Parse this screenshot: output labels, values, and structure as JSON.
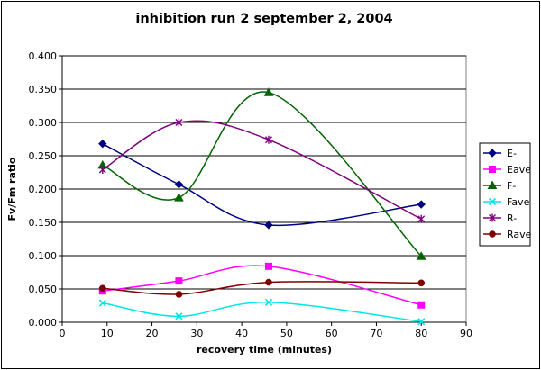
{
  "chart_data": {
    "type": "line",
    "title": "inhibition run 2 september  2, 2004",
    "xlabel": "recovery time (minutes)",
    "ylabel": "Fv/Fm ratio",
    "xlim": [
      0,
      90
    ],
    "ylim": [
      0,
      0.4
    ],
    "xticks": [
      0,
      10,
      20,
      30,
      40,
      50,
      60,
      70,
      80,
      90
    ],
    "yticks": [
      0,
      0.05,
      0.1,
      0.15,
      0.2,
      0.25,
      0.3,
      0.35,
      0.4
    ],
    "xtick_labels": [
      "0",
      "10",
      "20",
      "30",
      "40",
      "50",
      "60",
      "70",
      "80",
      "90"
    ],
    "ytick_labels": [
      "0.000",
      "0.050",
      "0.100",
      "0.150",
      "0.200",
      "0.250",
      "0.300",
      "0.350",
      "0.400"
    ],
    "grid": "horizontal",
    "legend_position": "right",
    "plot_background": "#ffffff",
    "series": [
      {
        "name": "E-",
        "color": "#000080",
        "marker": "diamond",
        "x": [
          9,
          26,
          46,
          80
        ],
        "y": [
          0.268,
          0.207,
          0.146,
          0.177
        ]
      },
      {
        "name": "Eave",
        "color": "#ff00ff",
        "marker": "square",
        "x": [
          9,
          26,
          46,
          80
        ],
        "y": [
          0.047,
          0.062,
          0.084,
          0.026
        ]
      },
      {
        "name": "F-",
        "color": "#006400",
        "marker": "triangle",
        "x": [
          9,
          26,
          46,
          80
        ],
        "y": [
          0.236,
          0.187,
          0.345,
          0.099
        ]
      },
      {
        "name": "Fave",
        "color": "#00e5e5",
        "marker": "x",
        "x": [
          9,
          26,
          46,
          80
        ],
        "y": [
          0.029,
          0.009,
          0.03,
          0.001
        ]
      },
      {
        "name": "R-",
        "color": "#800080",
        "marker": "asterisk",
        "x": [
          9,
          26,
          46,
          80
        ],
        "y": [
          0.229,
          0.3,
          0.274,
          0.155
        ]
      },
      {
        "name": "Rave",
        "color": "#800000",
        "marker": "circle",
        "x": [
          9,
          26,
          46,
          80
        ],
        "y": [
          0.051,
          0.042,
          0.06,
          0.059
        ]
      }
    ]
  }
}
